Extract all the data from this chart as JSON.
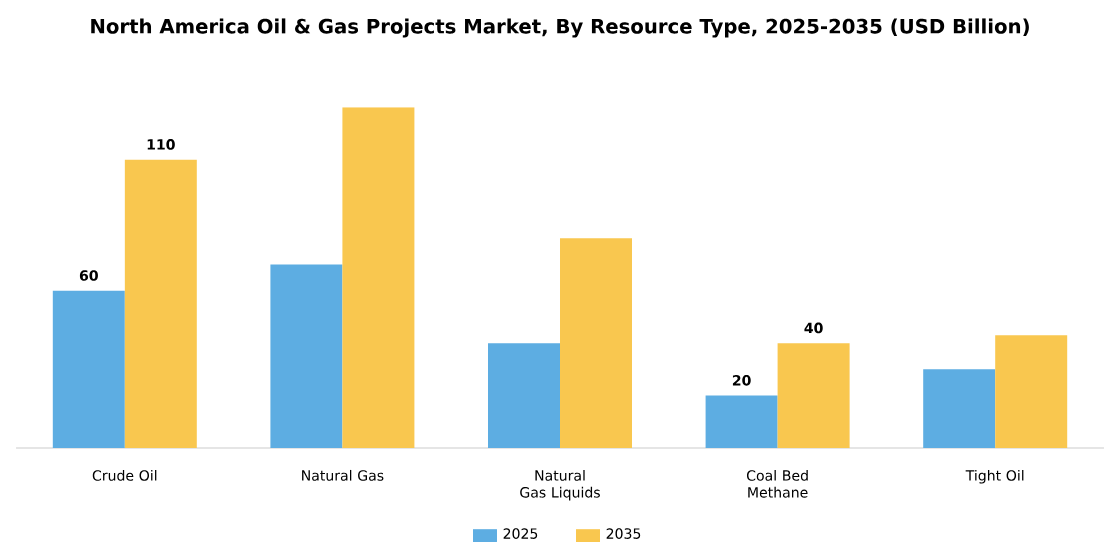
{
  "chart_data": {
    "type": "bar",
    "title": "North America Oil & Gas Projects Market, By Resource Type, 2025-2035 (USD Billion)",
    "categories": [
      "Crude Oil",
      "Natural Gas",
      "Natural Gas Liquids",
      "Coal Bed Methane",
      "Tight Oil"
    ],
    "series": [
      {
        "name": "2025",
        "color": "#5dade2",
        "values": [
          60,
          70,
          40,
          20,
          30
        ],
        "value_labels": [
          "60",
          null,
          null,
          "20",
          null
        ]
      },
      {
        "name": "2035",
        "color": "#f9c74f",
        "values": [
          110,
          130,
          80,
          40,
          43
        ],
        "value_labels": [
          "110",
          null,
          null,
          "40",
          null
        ]
      }
    ],
    "legend": "bottom"
  }
}
